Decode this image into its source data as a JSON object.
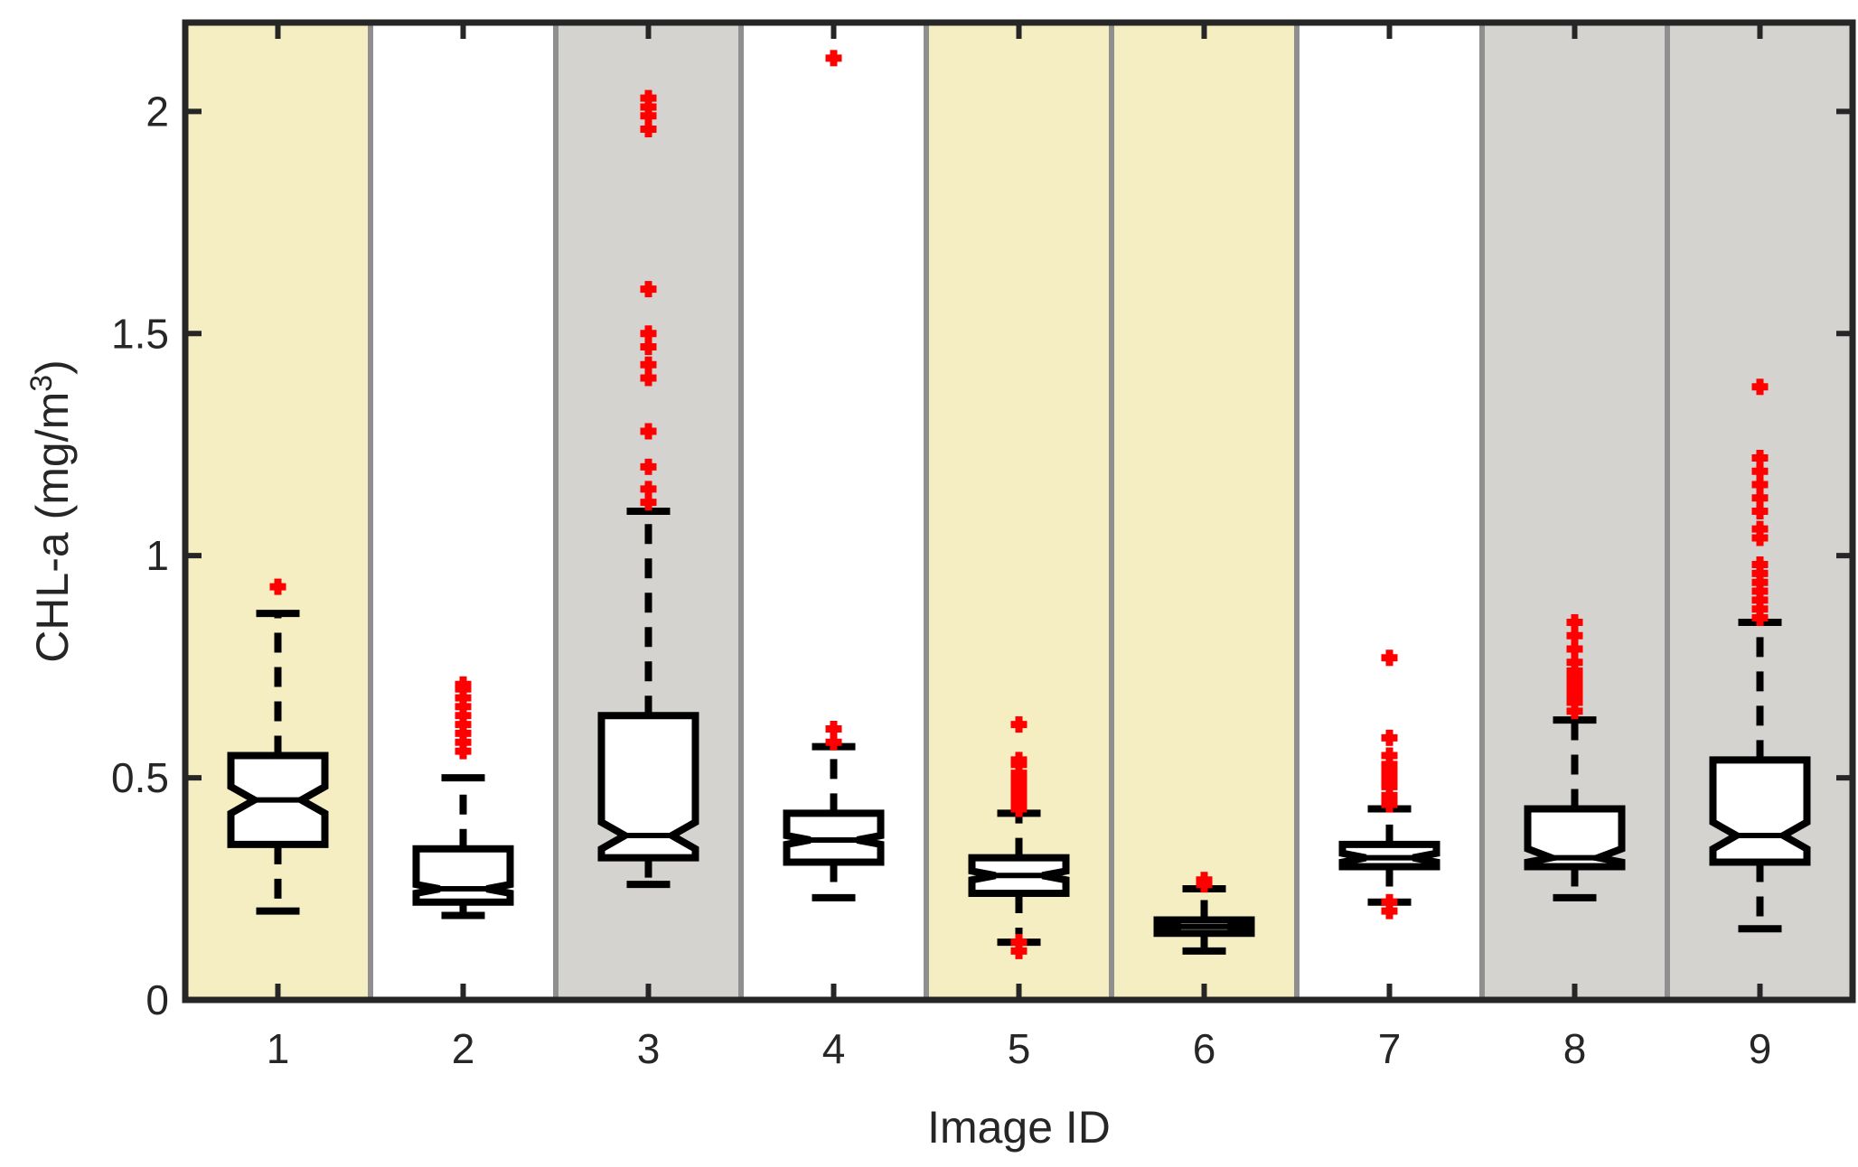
{
  "chart_data": {
    "type": "boxplot",
    "xlabel": "Image ID",
    "ylabel": "CHL-a (mg/m",
    "ylabel_superscript": "3",
    "ylabel_suffix": ")",
    "ylim": [
      0,
      2.2
    ],
    "yticks": [
      0,
      0.5,
      1,
      1.5,
      2
    ],
    "ytick_labels": [
      "0",
      "0.5",
      "1",
      "1.5",
      "2"
    ],
    "categories": [
      "1",
      "2",
      "3",
      "4",
      "5",
      "6",
      "7",
      "8",
      "9"
    ],
    "notched": true,
    "grid": false,
    "colors": {
      "yellow_band": "#f5eec3",
      "gray_band": "#d4d3d0",
      "white_band": "#ffffff",
      "separator": "#8f8f8f",
      "box": "#000000",
      "outlier": "#ff0000",
      "axes": "#262626"
    },
    "bands": [
      "yellow",
      "white",
      "gray",
      "white",
      "yellow",
      "yellow",
      "white",
      "gray",
      "gray"
    ],
    "boxes": [
      {
        "id": "1",
        "whisker_low": 0.2,
        "q1": 0.35,
        "median": 0.45,
        "q3": 0.55,
        "whisker_high": 0.87,
        "notch_low": 0.42,
        "notch_high": 0.48,
        "outliers": [
          0.93
        ]
      },
      {
        "id": "2",
        "whisker_low": 0.19,
        "q1": 0.22,
        "median": 0.25,
        "q3": 0.34,
        "whisker_high": 0.5,
        "notch_low": 0.24,
        "notch_high": 0.26,
        "outliers": [
          0.56,
          0.58,
          0.6,
          0.62,
          0.64,
          0.66,
          0.68,
          0.7,
          0.71
        ]
      },
      {
        "id": "3",
        "whisker_low": 0.26,
        "q1": 0.32,
        "median": 0.37,
        "q3": 0.64,
        "whisker_high": 1.1,
        "notch_low": 0.34,
        "notch_high": 0.4,
        "outliers": [
          1.12,
          1.15,
          1.2,
          1.28,
          1.4,
          1.43,
          1.47,
          1.5,
          1.6,
          1.96,
          1.99,
          2.01,
          2.03
        ]
      },
      {
        "id": "4",
        "whisker_low": 0.23,
        "q1": 0.31,
        "median": 0.36,
        "q3": 0.42,
        "whisker_high": 0.57,
        "notch_low": 0.35,
        "notch_high": 0.37,
        "outliers": [
          0.58,
          0.61,
          2.12
        ]
      },
      {
        "id": "5",
        "whisker_low": 0.13,
        "q1": 0.24,
        "median": 0.28,
        "q3": 0.32,
        "whisker_high": 0.42,
        "notch_low": 0.27,
        "notch_high": 0.29,
        "outliers": [
          0.11,
          0.13,
          0.43,
          0.44,
          0.45,
          0.46,
          0.47,
          0.48,
          0.49,
          0.5,
          0.51,
          0.53,
          0.54,
          0.62
        ]
      },
      {
        "id": "6",
        "whisker_low": 0.11,
        "q1": 0.15,
        "median": 0.165,
        "q3": 0.18,
        "whisker_high": 0.25,
        "notch_low": 0.16,
        "notch_high": 0.17,
        "outliers": [
          0.26,
          0.27
        ]
      },
      {
        "id": "7",
        "whisker_low": 0.22,
        "q1": 0.3,
        "median": 0.32,
        "q3": 0.35,
        "whisker_high": 0.43,
        "notch_low": 0.31,
        "notch_high": 0.33,
        "outliers": [
          0.2,
          0.22,
          0.44,
          0.45,
          0.46,
          0.48,
          0.49,
          0.5,
          0.51,
          0.52,
          0.53,
          0.55,
          0.59,
          0.77
        ]
      },
      {
        "id": "8",
        "whisker_low": 0.23,
        "q1": 0.3,
        "median": 0.32,
        "q3": 0.43,
        "whisker_high": 0.63,
        "notch_low": 0.31,
        "notch_high": 0.34,
        "outliers": [
          0.65,
          0.67,
          0.68,
          0.69,
          0.7,
          0.71,
          0.72,
          0.73,
          0.74,
          0.76,
          0.79,
          0.82,
          0.85
        ]
      },
      {
        "id": "9",
        "whisker_low": 0.16,
        "q1": 0.31,
        "median": 0.37,
        "q3": 0.54,
        "whisker_high": 0.85,
        "notch_low": 0.34,
        "notch_high": 0.4,
        "outliers": [
          0.86,
          0.88,
          0.9,
          0.92,
          0.94,
          0.96,
          0.98,
          1.04,
          1.06,
          1.1,
          1.13,
          1.16,
          1.19,
          1.22,
          1.38
        ]
      }
    ]
  }
}
